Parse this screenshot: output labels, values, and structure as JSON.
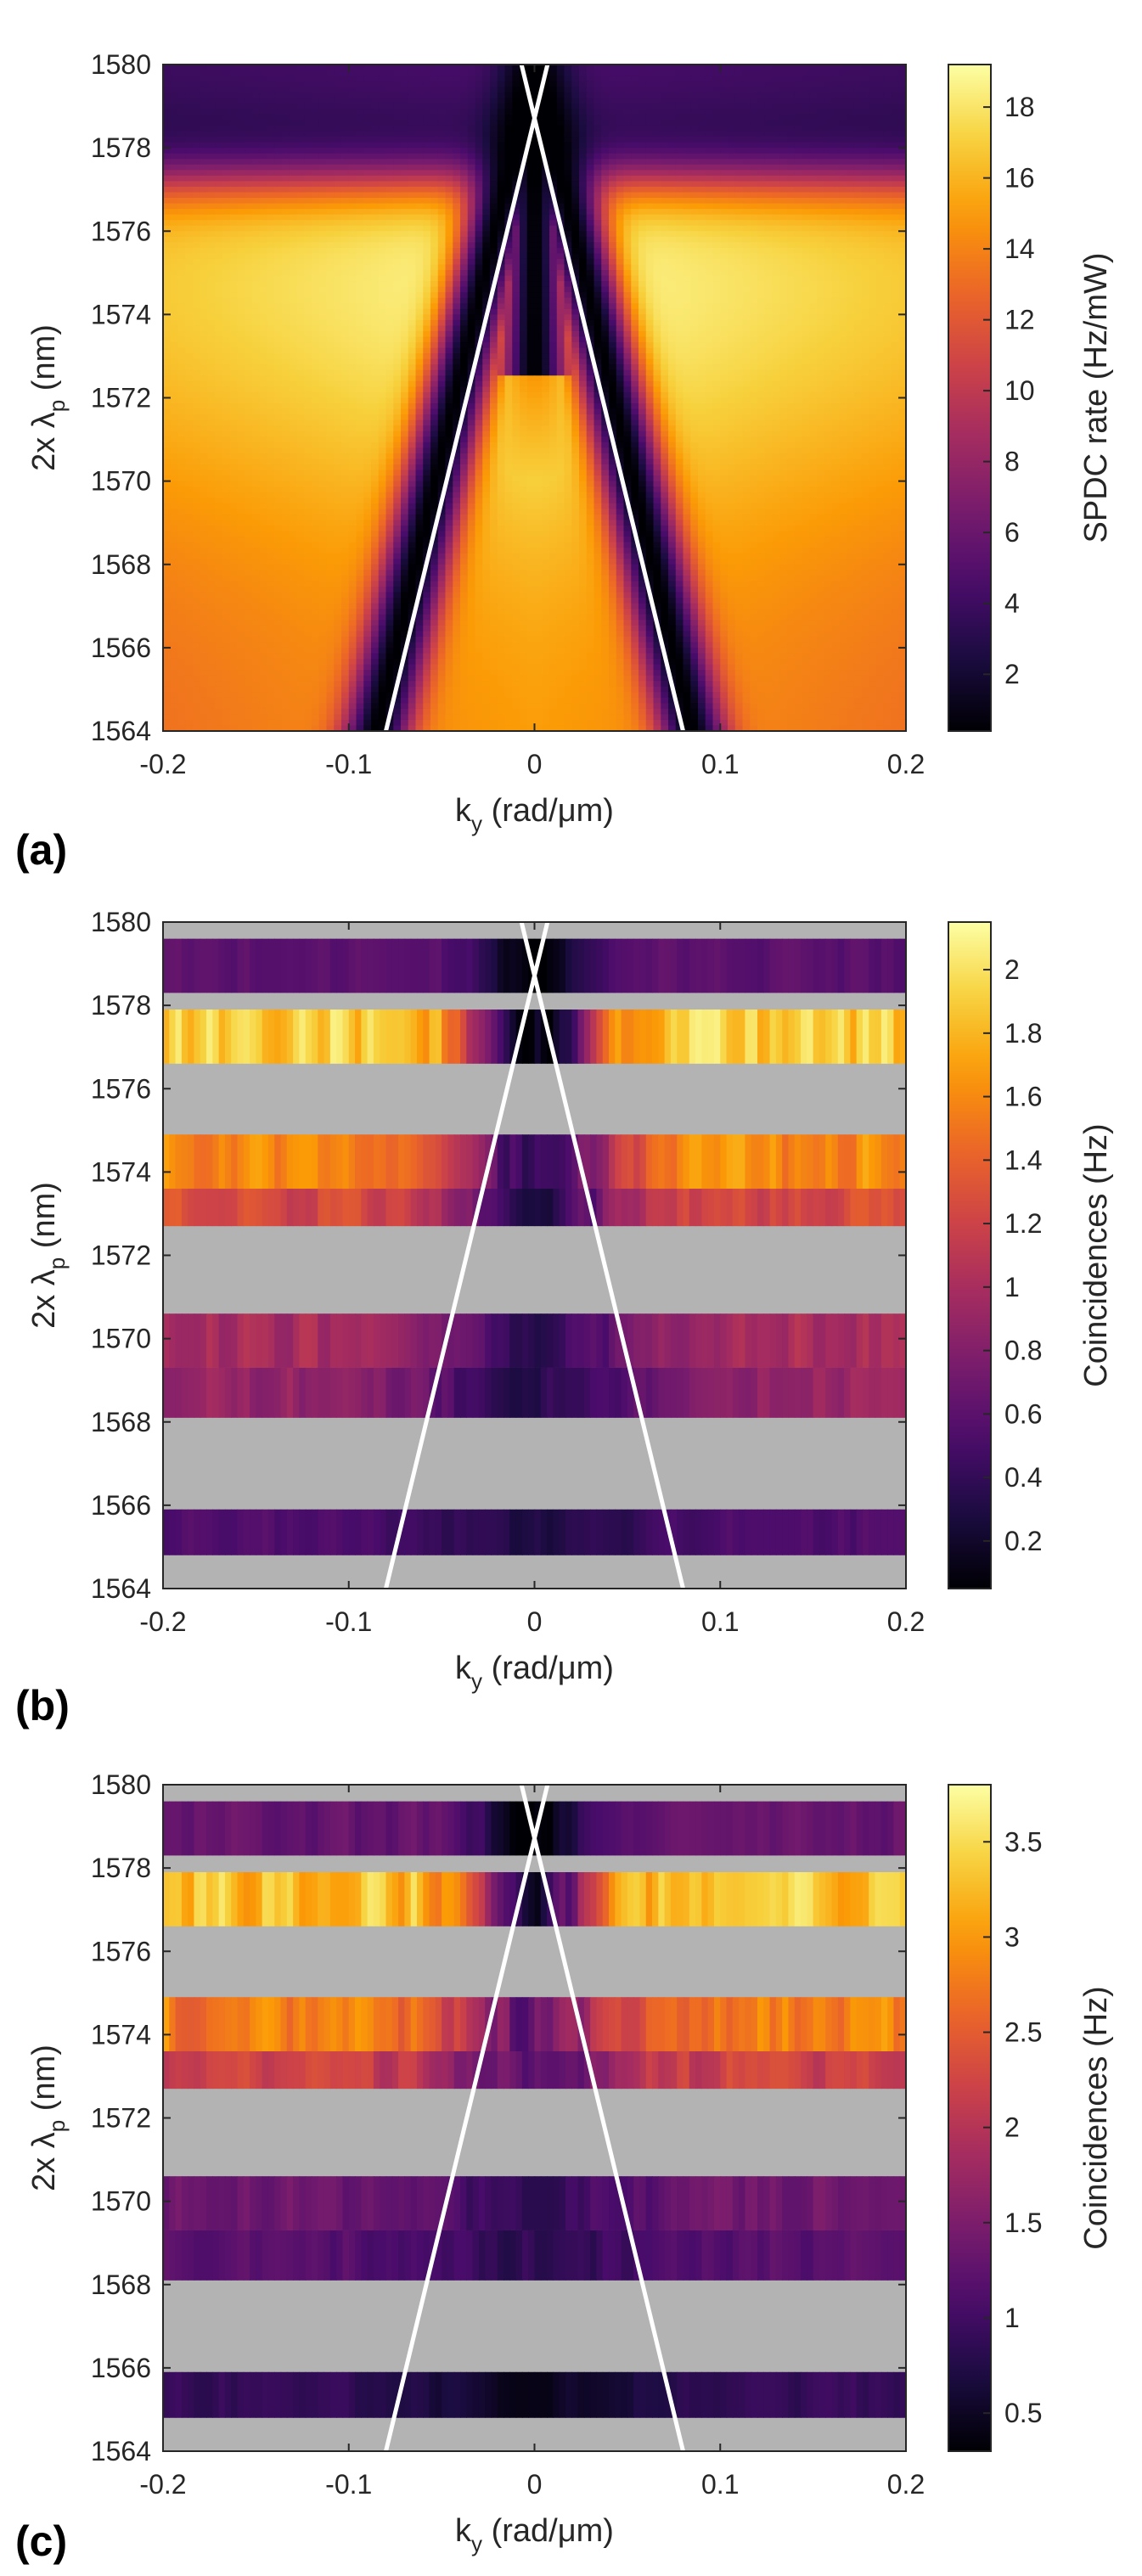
{
  "chart_data": [
    {
      "type": "heatmap",
      "panel_label": "(a)",
      "title": "",
      "xlabel": {
        "main": "k",
        "sub": "y",
        "unit": " (rad/μm)"
      },
      "ylabel": {
        "main": "2x λ",
        "sub": "p",
        "unit": " (nm)"
      },
      "xlim": [
        -0.2,
        0.2
      ],
      "ylim": [
        1564,
        1580
      ],
      "xticks": [
        "-0.2",
        "-0.1",
        "0",
        "0.1",
        "0.2"
      ],
      "yticks": [
        "1564",
        "1566",
        "1568",
        "1570",
        "1572",
        "1574",
        "1576",
        "1578",
        "1580"
      ],
      "colorbar": {
        "label": "SPDC rate (Hz/mW)",
        "range": [
          0.4,
          19.2
        ],
        "ticks": [
          "2",
          "4",
          "6",
          "8",
          "10",
          "12",
          "14",
          "16",
          "18"
        ],
        "tick_values": [
          2,
          4,
          6,
          8,
          10,
          12,
          14,
          16,
          18
        ]
      },
      "model": {
        "kind": "simulation",
        "max_rate": 19.2,
        "bright_band": [
          1564,
          1576.5
        ],
        "cutoff_transition_nm": 1577.3,
        "dark_center_branch_ky_at_1580": 0.0,
        "dark_center_branch_ky_at_1564": 0.085,
        "central_lobe_apex_nm": 1572.5
      },
      "lines": [
        {
          "name": "phase-matching-line-left",
          "points": [
            [
              -0.08,
              1564
            ],
            [
              0.007,
              1580
            ]
          ]
        },
        {
          "name": "phase-matching-line-right",
          "points": [
            [
              0.08,
              1564
            ],
            [
              -0.007,
              1580
            ]
          ]
        }
      ]
    },
    {
      "type": "heatmap",
      "panel_label": "(b)",
      "title": "",
      "xlabel": {
        "main": "k",
        "sub": "y",
        "unit": " (rad/μm)"
      },
      "ylabel": {
        "main": "2x λ",
        "sub": "p",
        "unit": " (nm)"
      },
      "xlim": [
        -0.2,
        0.2
      ],
      "ylim": [
        1564,
        1580
      ],
      "xticks": [
        "-0.2",
        "-0.1",
        "0",
        "0.1",
        "0.2"
      ],
      "yticks": [
        "1564",
        "1566",
        "1568",
        "1570",
        "1572",
        "1574",
        "1576",
        "1578",
        "1580"
      ],
      "colorbar": {
        "label": "Coincidences (Hz)",
        "range": [
          0.05,
          2.15
        ],
        "ticks": [
          "0.2",
          "0.4",
          "0.6",
          "0.8",
          "1",
          "1.2",
          "1.4",
          "1.6",
          "1.8",
          "2"
        ],
        "tick_values": [
          0.2,
          0.4,
          0.6,
          0.8,
          1.0,
          1.2,
          1.4,
          1.6,
          1.8,
          2.0
        ]
      },
      "no_data_color": "#b3b3b3",
      "bands": [
        {
          "y0": 1578.3,
          "y1": 1579.6,
          "level": 0.6,
          "dip_ky": 0.0,
          "dip_width": 0.03,
          "dip_depth": 0.55
        },
        {
          "y0": 1576.6,
          "y1": 1577.9,
          "level": 1.9,
          "dip_ky": 0.0,
          "dip_width": 0.035,
          "dip_depth": 1.85
        },
        {
          "y0": 1573.6,
          "y1": 1574.9,
          "level": 1.6,
          "dip_ky": 0.0,
          "dip_width": 0.045,
          "dip_depth": 1.2
        },
        {
          "y0": 1572.7,
          "y1": 1573.6,
          "level": 1.25,
          "dip_ky": 0.0,
          "dip_width": 0.05,
          "dip_depth": 0.9
        },
        {
          "y0": 1569.3,
          "y1": 1570.6,
          "level": 1.0,
          "dip_ky": 0.0,
          "dip_width": 0.06,
          "dip_depth": 0.6
        },
        {
          "y0": 1568.1,
          "y1": 1569.3,
          "level": 0.9,
          "dip_ky": 0.0,
          "dip_width": 0.065,
          "dip_depth": 0.55
        },
        {
          "y0": 1564.8,
          "y1": 1565.9,
          "level": 0.55,
          "dip_ky": 0.0,
          "dip_width": 0.07,
          "dip_depth": 0.25
        }
      ],
      "lines": [
        {
          "name": "phase-matching-line-left",
          "points": [
            [
              -0.08,
              1564
            ],
            [
              0.007,
              1580
            ]
          ]
        },
        {
          "name": "phase-matching-line-right",
          "points": [
            [
              0.08,
              1564
            ],
            [
              -0.007,
              1580
            ]
          ]
        }
      ]
    },
    {
      "type": "heatmap",
      "panel_label": "(c)",
      "title": "",
      "xlabel": {
        "main": "k",
        "sub": "y",
        "unit": " (rad/μm)"
      },
      "ylabel": {
        "main": "2x λ",
        "sub": "p",
        "unit": " (nm)"
      },
      "xlim": [
        -0.2,
        0.2
      ],
      "ylim": [
        1564,
        1580
      ],
      "xticks": [
        "-0.2",
        "-0.1",
        "0",
        "0.1",
        "0.2"
      ],
      "yticks": [
        "1564",
        "1566",
        "1568",
        "1570",
        "1572",
        "1574",
        "1576",
        "1578",
        "1580"
      ],
      "colorbar": {
        "label": "Coincidences (Hz)",
        "range": [
          0.3,
          3.8
        ],
        "ticks": [
          "0.5",
          "1",
          "1.5",
          "2",
          "2.5",
          "3",
          "3.5"
        ],
        "tick_values": [
          0.5,
          1.0,
          1.5,
          2.0,
          2.5,
          3.0,
          3.5
        ]
      },
      "no_data_color": "#b3b3b3",
      "bands": [
        {
          "y0": 1578.3,
          "y1": 1579.6,
          "level": 1.3,
          "dip_ky": 0.0,
          "dip_width": 0.03,
          "dip_depth": 1.0
        },
        {
          "y0": 1576.6,
          "y1": 1577.9,
          "level": 3.3,
          "dip_ky": 0.0,
          "dip_width": 0.035,
          "dip_depth": 2.6
        },
        {
          "y0": 1573.6,
          "y1": 1574.9,
          "level": 2.8,
          "dip_ky": 0.0,
          "dip_width": 0.045,
          "dip_depth": 1.5
        },
        {
          "y0": 1572.7,
          "y1": 1573.6,
          "level": 2.2,
          "dip_ky": 0.0,
          "dip_width": 0.05,
          "dip_depth": 1.0
        },
        {
          "y0": 1569.3,
          "y1": 1570.6,
          "level": 1.4,
          "dip_ky": 0.0,
          "dip_width": 0.06,
          "dip_depth": 0.5
        },
        {
          "y0": 1568.1,
          "y1": 1569.3,
          "level": 1.2,
          "dip_ky": 0.0,
          "dip_width": 0.065,
          "dip_depth": 0.35
        },
        {
          "y0": 1564.8,
          "y1": 1565.9,
          "level": 0.9,
          "dip_ky": 0.0,
          "dip_width": 0.07,
          "dip_depth": 0.4
        }
      ],
      "lines": [
        {
          "name": "phase-matching-line-left",
          "points": [
            [
              -0.08,
              1564
            ],
            [
              0.007,
              1580
            ]
          ]
        },
        {
          "name": "phase-matching-line-right",
          "points": [
            [
              0.08,
              1564
            ],
            [
              -0.007,
              1580
            ]
          ]
        }
      ]
    }
  ],
  "colors": {
    "line": "#ffffff",
    "axis": "#262626",
    "no_data": "#b3b3b3",
    "colormap": [
      "#000004",
      "#1b0c41",
      "#4a0c6b",
      "#781c6d",
      "#a52c60",
      "#cf4446",
      "#ed6925",
      "#fb9b06",
      "#f7d13d",
      "#fcffa4"
    ]
  }
}
